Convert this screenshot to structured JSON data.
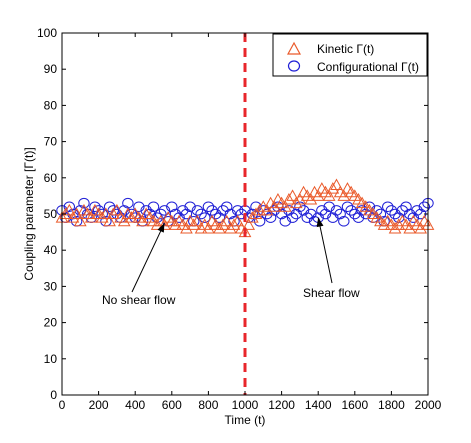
{
  "chart_data": {
    "type": "scatter",
    "xlabel": "Time (t)",
    "ylabel": "Coupling parameter [Γ(t)]",
    "xlim": [
      0,
      2000
    ],
    "ylim": [
      0,
      100
    ],
    "xticks": [
      0,
      200,
      400,
      600,
      800,
      1000,
      1200,
      1400,
      1600,
      1800,
      2000
    ],
    "yticks": [
      0,
      10,
      20,
      30,
      40,
      50,
      60,
      70,
      80,
      90,
      100
    ],
    "grid": false,
    "legend_position": "top-right",
    "vertical_line": {
      "x": 1000,
      "color": "#e8262b",
      "style": "dashed"
    },
    "series": [
      {
        "name": "Kinetic  Γ(t)",
        "marker": "triangle",
        "color": "#ea5a2a",
        "x": [
          0,
          20,
          40,
          60,
          80,
          100,
          120,
          140,
          160,
          180,
          200,
          220,
          240,
          260,
          280,
          300,
          320,
          340,
          360,
          380,
          400,
          420,
          440,
          460,
          480,
          500,
          520,
          540,
          560,
          580,
          600,
          620,
          640,
          660,
          680,
          700,
          720,
          740,
          760,
          780,
          800,
          820,
          840,
          860,
          880,
          900,
          920,
          940,
          960,
          980,
          1000,
          1020,
          1040,
          1060,
          1080,
          1100,
          1120,
          1140,
          1160,
          1180,
          1200,
          1220,
          1240,
          1260,
          1280,
          1300,
          1320,
          1340,
          1360,
          1380,
          1400,
          1420,
          1440,
          1460,
          1480,
          1500,
          1520,
          1540,
          1560,
          1580,
          1600,
          1620,
          1640,
          1660,
          1680,
          1700,
          1720,
          1740,
          1760,
          1780,
          1800,
          1820,
          1840,
          1860,
          1880,
          1900,
          1920,
          1940,
          1960,
          1980,
          2000
        ],
        "y": [
          49,
          50,
          51,
          49,
          50,
          48,
          51,
          50,
          49,
          51,
          50,
          49,
          50,
          48,
          50,
          51,
          49,
          48,
          50,
          49,
          50,
          49,
          48,
          50,
          49,
          48,
          47,
          48,
          47,
          49,
          48,
          47,
          48,
          47,
          46,
          48,
          47,
          48,
          46,
          47,
          46,
          48,
          47,
          46,
          47,
          48,
          46,
          47,
          48,
          46,
          45,
          47,
          49,
          50,
          51,
          52,
          51,
          53,
          52,
          54,
          53,
          52,
          54,
          55,
          53,
          54,
          56,
          55,
          54,
          56,
          55,
          57,
          56,
          55,
          57,
          58,
          56,
          55,
          57,
          56,
          55,
          54,
          53,
          52,
          51,
          50,
          49,
          48,
          47,
          48,
          47,
          46,
          47,
          48,
          47,
          46,
          48,
          47,
          46,
          48,
          47
        ]
      },
      {
        "name": "Configurational Γ(t)",
        "marker": "circle",
        "color": "#1f1fd6",
        "x": [
          0,
          20,
          40,
          60,
          80,
          100,
          120,
          140,
          160,
          180,
          200,
          220,
          240,
          260,
          280,
          300,
          320,
          340,
          360,
          380,
          400,
          420,
          440,
          460,
          480,
          500,
          520,
          540,
          560,
          580,
          600,
          620,
          640,
          660,
          680,
          700,
          720,
          740,
          760,
          780,
          800,
          820,
          840,
          860,
          880,
          900,
          920,
          940,
          960,
          980,
          1000,
          1020,
          1040,
          1060,
          1080,
          1100,
          1120,
          1140,
          1160,
          1180,
          1200,
          1220,
          1240,
          1260,
          1280,
          1300,
          1320,
          1340,
          1360,
          1380,
          1400,
          1420,
          1440,
          1460,
          1480,
          1500,
          1520,
          1540,
          1560,
          1580,
          1600,
          1620,
          1640,
          1660,
          1680,
          1700,
          1720,
          1740,
          1760,
          1780,
          1800,
          1820,
          1840,
          1860,
          1880,
          1900,
          1920,
          1940,
          1960,
          1980,
          2000
        ],
        "y": [
          51,
          49,
          52,
          50,
          48,
          51,
          53,
          50,
          49,
          52,
          51,
          50,
          48,
          52,
          51,
          50,
          49,
          51,
          53,
          50,
          49,
          52,
          48,
          51,
          50,
          52,
          49,
          50,
          51,
          48,
          52,
          50,
          49,
          51,
          50,
          52,
          48,
          51,
          50,
          49,
          52,
          51,
          50,
          49,
          51,
          52,
          50,
          48,
          51,
          50,
          51,
          49,
          50,
          52,
          48,
          51,
          50,
          49,
          51,
          52,
          50,
          48,
          51,
          49,
          50,
          52,
          51,
          49,
          50,
          48,
          49,
          51,
          50,
          52,
          49,
          51,
          50,
          48,
          52,
          51,
          50,
          49,
          51,
          50,
          52,
          49,
          51,
          50,
          48,
          52,
          51,
          50,
          49,
          51,
          52,
          50,
          49,
          51,
          50,
          52,
          53
        ]
      }
    ],
    "annotations": [
      {
        "text": "No shear flow",
        "arrow_to": {
          "x": 560,
          "y": 47.5
        }
      },
      {
        "text": "Shear flow",
        "arrow_to": {
          "x": 1400,
          "y": 49
        }
      }
    ]
  }
}
